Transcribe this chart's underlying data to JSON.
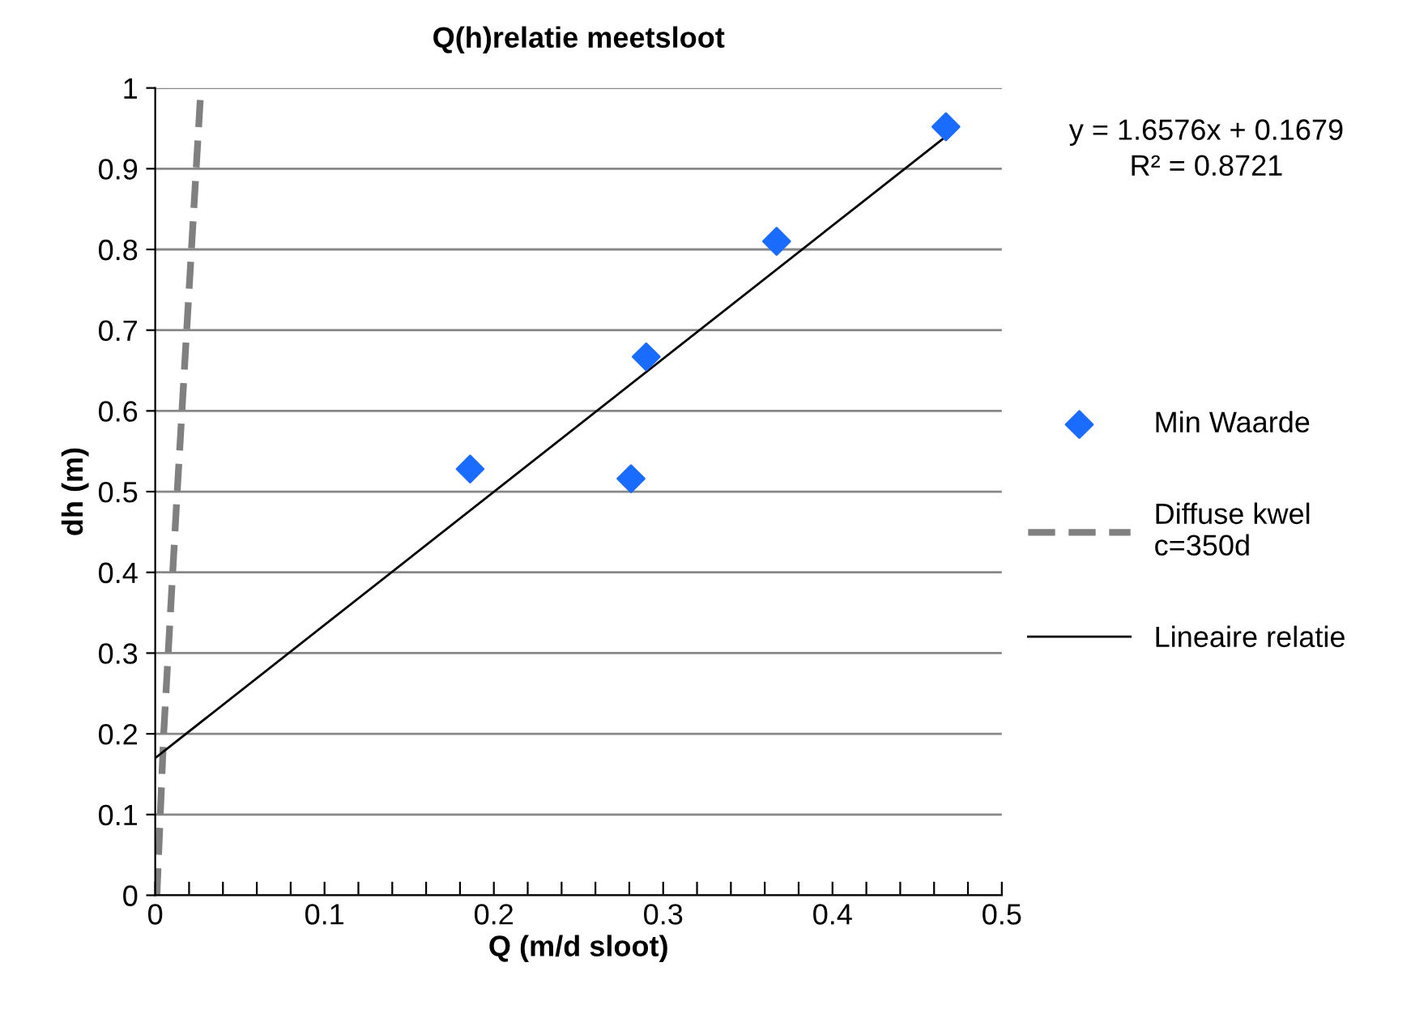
{
  "chart_data": {
    "type": "scatter",
    "title": "Q(h)relatie meetsloot",
    "xlabel": "Q (m/d sloot)",
    "ylabel": "dh (m)",
    "annotations": [
      "y = 1.6576x + 0.1679\nR² = 0.8721"
    ],
    "series": [
      {
        "name": "Min Waarde",
        "color": "#1a6cff",
        "marker": "diamond",
        "x": [
          0.186,
          0.281,
          0.29,
          0.367,
          0.467
        ],
        "values": [
          0.528,
          0.516,
          0.667,
          0.81,
          0.952
        ]
      },
      {
        "name": "Diffuse kwel\nc=350d",
        "type": "line",
        "color": "#808080",
        "line_style": "dashed",
        "marker": "none",
        "x": [
          0.001,
          0.005,
          0.013,
          0.027
        ],
        "values": [
          0,
          0.2,
          0.5,
          1.0
        ]
      },
      {
        "name": "Lineaire relatie",
        "type": "line",
        "color": "#000000",
        "line_style": "solid",
        "marker": "none",
        "x": [
          0,
          0.467
        ],
        "values": [
          0.17,
          0.94
        ]
      }
    ],
    "xlim": [
      0,
      0.5
    ],
    "ylim": [
      0,
      1
    ],
    "xticks": [
      0,
      {
        "value": 0.02,
        "label": null
      },
      {
        "value": 0.04,
        "label": null
      },
      {
        "value": 0.06,
        "label": null
      },
      {
        "value": 0.08,
        "label": null
      },
      0.1,
      {
        "value": 0.12,
        "label": null
      },
      {
        "value": 0.14,
        "label": null
      },
      {
        "value": 0.16,
        "label": null
      },
      {
        "value": 0.18,
        "label": null
      },
      0.2,
      {
        "value": 0.22,
        "label": null
      },
      {
        "value": 0.24,
        "label": null
      },
      {
        "value": 0.26,
        "label": null
      },
      {
        "value": 0.28,
        "label": null
      },
      0.3,
      {
        "value": 0.32,
        "label": null
      },
      {
        "value": 0.34,
        "label": null
      },
      {
        "value": 0.36,
        "label": null
      },
      {
        "value": 0.38,
        "label": null
      },
      0.4,
      {
        "value": 0.42,
        "label": null
      },
      {
        "value": 0.44,
        "label": null
      },
      {
        "value": 0.46,
        "label": null
      },
      {
        "value": 0.48,
        "label": null
      },
      0.5
    ],
    "yticks": [
      0,
      0.1,
      0.2,
      0.3,
      0.4,
      0.5,
      0.6,
      0.7,
      0.8,
      0.9,
      1
    ],
    "grid": "y",
    "legend": "right"
  }
}
